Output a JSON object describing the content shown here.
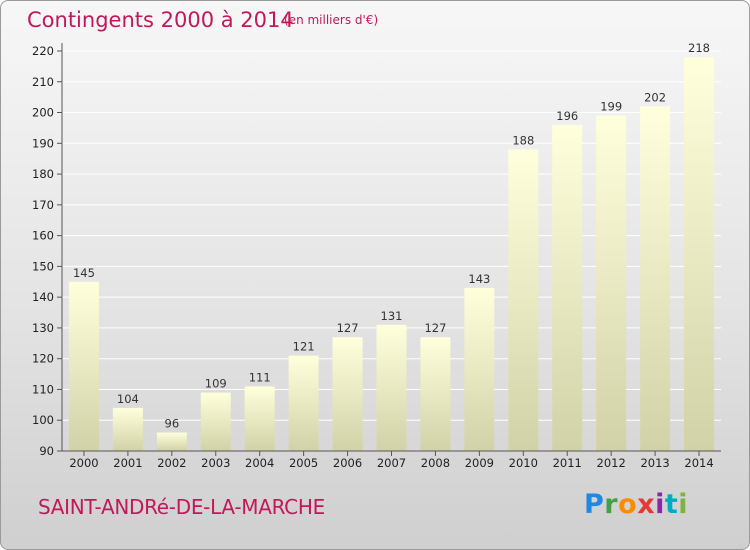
{
  "header": {
    "title": "Contingents 2000 à 2014",
    "unit": "(en milliers d'€)"
  },
  "footer": {
    "place": "SAINT-ANDRé-DE-LA-MARCHE",
    "logo_letters": [
      "P",
      "r",
      "o",
      "x",
      "i",
      "t",
      "i"
    ],
    "logo_colors": [
      "#1e88e5",
      "#43a047",
      "#fb8c00",
      "#e53935",
      "#8e24aa",
      "#00acc1",
      "#7cb342"
    ]
  },
  "colors": {
    "title": "#c2185b",
    "bar_top": "#ffffdc",
    "bar_bottom": "#d2d2a8",
    "grid": "#ffffff",
    "axis": "#555555"
  },
  "chart_data": {
    "type": "bar",
    "categories": [
      "2000",
      "2001",
      "2002",
      "2003",
      "2004",
      "2005",
      "2006",
      "2007",
      "2008",
      "2009",
      "2010",
      "2011",
      "2012",
      "2013",
      "2014"
    ],
    "values": [
      145,
      104,
      96,
      109,
      111,
      121,
      127,
      131,
      127,
      143,
      188,
      196,
      199,
      202,
      218
    ],
    "ylim": [
      90,
      220
    ],
    "yticks": [
      90,
      100,
      110,
      120,
      130,
      140,
      150,
      160,
      170,
      180,
      190,
      200,
      210,
      220
    ],
    "grid": true,
    "xlabel": "",
    "ylabel": ""
  }
}
